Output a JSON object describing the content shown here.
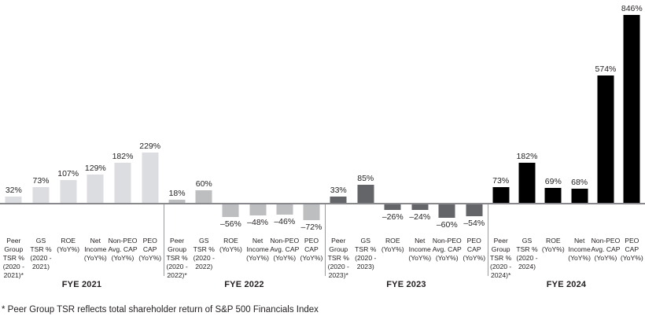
{
  "chart_data": {
    "type": "bar",
    "title": "",
    "unit": "%",
    "ylim": [
      -100,
      900
    ],
    "grid": false,
    "legend": "none",
    "baseline_value": 0,
    "negative_sign": "–",
    "groups": [
      {
        "label": "FYE 2021",
        "bar_color": "#dcdde0",
        "bars": [
          {
            "category": "Peer Group TSR % (2020 - 2021)*",
            "lines": [
              "Peer",
              "Group",
              "TSR %",
              "(2020 -",
              "2021)*"
            ],
            "value": 32
          },
          {
            "category": "GS TSR % (2020 - 2021)",
            "lines": [
              "GS",
              "TSR %",
              "(2020 -",
              "2021)"
            ],
            "value": 73
          },
          {
            "category": "ROE (YoY%)",
            "lines": [
              "ROE",
              "(YoY%)"
            ],
            "value": 107
          },
          {
            "category": "Net Income (YoY%)",
            "lines": [
              "Net",
              "Income",
              "(YoY%)"
            ],
            "value": 129
          },
          {
            "category": "Non-PEO Avg. CAP (YoY%)",
            "lines": [
              "Non-PEO",
              "Avg. CAP",
              "(YoY%)"
            ],
            "value": 182
          },
          {
            "category": "PEO CAP (YoY%)",
            "lines": [
              "PEO",
              "CAP",
              "(YoY%)"
            ],
            "value": 229
          }
        ]
      },
      {
        "label": "FYE 2022",
        "bar_color": "#bcbec0",
        "bars": [
          {
            "category": "Peer Group TSR % (2020 - 2022)*",
            "lines": [
              "Peer",
              "Group",
              "TSR %",
              "(2020 -",
              "2022)*"
            ],
            "value": 18
          },
          {
            "category": "GS TSR % (2020 - 2022)",
            "lines": [
              "GS",
              "TSR %",
              "(2020 -",
              "2022)"
            ],
            "value": 60
          },
          {
            "category": "ROE (YoY%)",
            "lines": [
              "ROE",
              "(YoY%)"
            ],
            "value": -56
          },
          {
            "category": "Net Income (YoY%)",
            "lines": [
              "Net",
              "Income",
              "(YoY%)"
            ],
            "value": -48
          },
          {
            "category": "Non-PEO Avg. CAP (YoY%)",
            "lines": [
              "Non-PEO",
              "Avg. CAP",
              "(YoY%)"
            ],
            "value": -46
          },
          {
            "category": "PEO CAP (YoY%)",
            "lines": [
              "PEO",
              "CAP",
              "(YoY%)"
            ],
            "value": -72
          }
        ]
      },
      {
        "label": "FYE 2023",
        "bar_color": "#636569",
        "bars": [
          {
            "category": "Peer Group TSR % (2020 - 2023)*",
            "lines": [
              "Peer",
              "Group",
              "TSR %",
              "(2020 -",
              "2023)*"
            ],
            "value": 33
          },
          {
            "category": "GS TSR % (2020 - 2023)",
            "lines": [
              "GS",
              "TSR %",
              "(2020 -",
              "2023)"
            ],
            "value": 85
          },
          {
            "category": "ROE (YoY%)",
            "lines": [
              "ROE",
              "(YoY%)"
            ],
            "value": -26
          },
          {
            "category": "Net Income (YoY%)",
            "lines": [
              "Net",
              "Income",
              "(YoY%)"
            ],
            "value": -24
          },
          {
            "category": "Non-PEO Avg. CAP (YoY%)",
            "lines": [
              "Non-PEO",
              "Avg. CAP",
              "(YoY%)"
            ],
            "value": -60
          },
          {
            "category": "PEO CAP (YoY%)",
            "lines": [
              "PEO",
              "CAP",
              "(YoY%)"
            ],
            "value": -54
          }
        ]
      },
      {
        "label": "FYE 2024",
        "bar_color": "#000000",
        "bars": [
          {
            "category": "Peer Group TSR % (2020 - 2024)*",
            "lines": [
              "Peer",
              "Group",
              "TSR %",
              "(2020 -",
              "2024)*"
            ],
            "value": 73
          },
          {
            "category": "GS TSR % (2020 - 2024)",
            "lines": [
              "GS",
              "TSR %",
              "(2020 -",
              "2024)"
            ],
            "value": 182
          },
          {
            "category": "ROE (YoY%)",
            "lines": [
              "ROE",
              "(YoY%)"
            ],
            "value": 69
          },
          {
            "category": "Net Income (YoY%)",
            "lines": [
              "Net",
              "Income",
              "(YoY%)"
            ],
            "value": 68
          },
          {
            "category": "Non-PEO Avg. CAP (YoY%)",
            "lines": [
              "Non-PEO",
              "Avg. CAP",
              "(YoY%)"
            ],
            "value": 574
          },
          {
            "category": "PEO CAP (YoY%)",
            "lines": [
              "PEO",
              "CAP",
              "(YoY%)"
            ],
            "value": 846
          }
        ]
      }
    ]
  },
  "footnote": "* Peer Group TSR reflects total shareholder return of S&P 500 Financials Index",
  "colors": {
    "background": "#ffffff",
    "axis_line": "#87898c",
    "separator": "#9a9c9e",
    "text": "#231f20",
    "group_colors": [
      "#dcdde0",
      "#bcbec0",
      "#636569",
      "#000000"
    ]
  }
}
